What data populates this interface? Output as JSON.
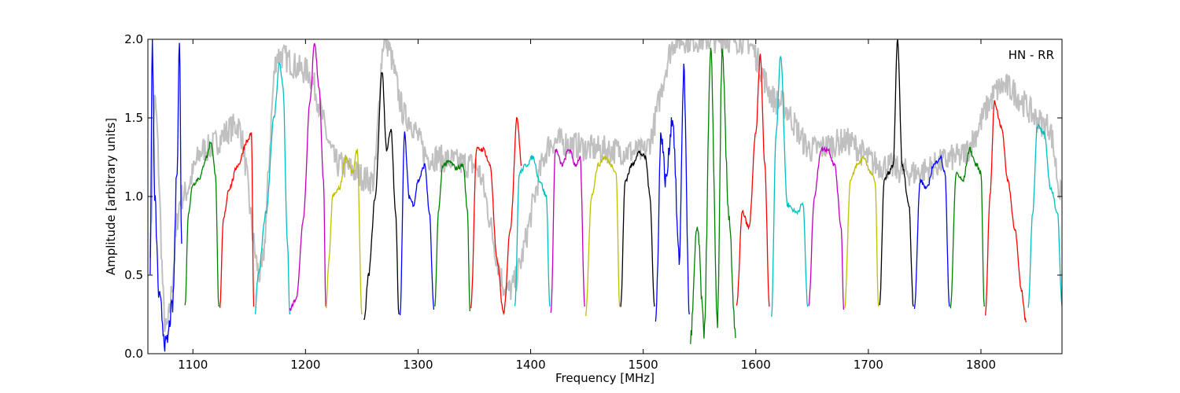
{
  "chart_data": {
    "type": "line",
    "title": "",
    "xlabel": "Frequency [MHz]",
    "ylabel": "Amplitude [arbitrary units]",
    "xlim": [
      1060,
      1872
    ],
    "ylim": [
      0.0,
      2.0
    ],
    "xticks": [
      "1100",
      "1200",
      "1300",
      "1400",
      "1500",
      "1600",
      "1700",
      "1800"
    ],
    "yticks": [
      "0.0",
      "0.5",
      "1.0",
      "1.5",
      "2.0"
    ],
    "grid": false,
    "annotation": "HN - RR",
    "background_color": "#c0c0c0",
    "band_colors": [
      "#0000ff",
      "#008000",
      "#ff0000",
      "#00bfbf",
      "#bf00bf",
      "#bfbf00",
      "#000000"
    ],
    "band_width_mhz": 31,
    "band_start_mhz": 1062,
    "bands": [
      {
        "color": "#0000ff",
        "x": [
          1062,
          1064,
          1066,
          1070,
          1076,
          1082,
          1086,
          1088,
          1090
        ],
        "y": [
          0.55,
          2.0,
          1.0,
          0.35,
          0.05,
          0.3,
          1.2,
          2.0,
          0.7
        ]
      },
      {
        "color": "#008000",
        "x": [
          1093,
          1096,
          1100,
          1106,
          1112,
          1116,
          1120,
          1123
        ],
        "y": [
          0.3,
          0.9,
          1.08,
          1.12,
          1.25,
          1.35,
          1.15,
          0.3
        ]
      },
      {
        "color": "#ff0000",
        "x": [
          1124,
          1127,
          1132,
          1140,
          1148,
          1152,
          1154
        ],
        "y": [
          0.28,
          0.85,
          1.05,
          1.2,
          1.35,
          1.4,
          0.3
        ]
      },
      {
        "color": "#00bfbf",
        "x": [
          1155,
          1158,
          1165,
          1172,
          1177,
          1180,
          1184,
          1186
        ],
        "y": [
          0.25,
          0.5,
          0.9,
          1.5,
          1.85,
          1.7,
          0.7,
          0.25
        ]
      },
      {
        "color": "#bf00bf",
        "x": [
          1186,
          1192,
          1198,
          1204,
          1208,
          1212,
          1216,
          1218
        ],
        "y": [
          0.28,
          0.35,
          0.85,
          1.6,
          1.98,
          1.7,
          1.1,
          0.3
        ]
      },
      {
        "color": "#bfbf00",
        "x": [
          1218,
          1221,
          1224,
          1230,
          1236,
          1242,
          1246,
          1250
        ],
        "y": [
          0.28,
          0.6,
          1.0,
          1.05,
          1.25,
          1.15,
          1.3,
          0.25
        ]
      },
      {
        "color": "#000000",
        "x": [
          1252,
          1256,
          1262,
          1268,
          1272,
          1276,
          1280,
          1283
        ],
        "y": [
          0.2,
          0.5,
          1.0,
          1.8,
          1.3,
          1.42,
          0.9,
          0.25
        ]
      },
      {
        "color": "#0000ff",
        "x": [
          1284,
          1288,
          1292,
          1296,
          1300,
          1306,
          1310,
          1314
        ],
        "y": [
          0.25,
          1.4,
          1.0,
          0.95,
          1.1,
          1.2,
          0.9,
          0.28
        ]
      },
      {
        "color": "#008000",
        "x": [
          1315,
          1318,
          1322,
          1328,
          1334,
          1340,
          1344,
          1346
        ],
        "y": [
          0.3,
          0.9,
          1.2,
          1.22,
          1.18,
          1.2,
          0.9,
          0.27
        ]
      },
      {
        "color": "#ff0000",
        "x": [
          1347,
          1352,
          1358,
          1364,
          1370,
          1376,
          1382,
          1388,
          1392
        ],
        "y": [
          0.3,
          1.3,
          1.3,
          1.2,
          0.6,
          0.25,
          0.8,
          1.5,
          1.2
        ]
      },
      {
        "color": "#00bfbf",
        "x": [
          1386,
          1390,
          1396,
          1402,
          1408,
          1414,
          1417
        ],
        "y": [
          0.3,
          1.15,
          1.2,
          1.25,
          1.1,
          1.0,
          0.3
        ]
      },
      {
        "color": "#bf00bf",
        "x": [
          1418,
          1422,
          1428,
          1434,
          1440,
          1444,
          1448
        ],
        "y": [
          0.25,
          1.3,
          1.2,
          1.3,
          1.2,
          1.25,
          0.3
        ]
      },
      {
        "color": "#bfbf00",
        "x": [
          1449,
          1454,
          1460,
          1466,
          1472,
          1476,
          1479
        ],
        "y": [
          0.25,
          1.0,
          1.2,
          1.25,
          1.2,
          1.15,
          0.3
        ]
      },
      {
        "color": "#000000",
        "x": [
          1480,
          1484,
          1490,
          1496,
          1502,
          1506,
          1510
        ],
        "y": [
          0.3,
          1.1,
          1.2,
          1.28,
          1.25,
          1.0,
          0.3
        ]
      },
      {
        "color": "#0000ff",
        "x": [
          1511,
          1516,
          1520,
          1526,
          1532,
          1536,
          1541
        ],
        "y": [
          0.2,
          1.4,
          1.1,
          1.5,
          0.6,
          1.8,
          0.25
        ]
      },
      {
        "color": "#008000",
        "x": [
          1542,
          1548,
          1554,
          1560,
          1566,
          1570,
          1576,
          1582
        ],
        "y": [
          0.1,
          0.8,
          0.15,
          1.9,
          0.2,
          1.9,
          0.9,
          0.1
        ]
      },
      {
        "color": "#ff0000",
        "x": [
          1583,
          1588,
          1594,
          1600,
          1604,
          1608,
          1612
        ],
        "y": [
          0.3,
          0.9,
          0.8,
          1.4,
          1.9,
          1.2,
          0.3
        ]
      },
      {
        "color": "#00bfbf",
        "x": [
          1614,
          1618,
          1622,
          1628,
          1636,
          1642,
          1646
        ],
        "y": [
          0.25,
          1.4,
          1.9,
          0.95,
          0.9,
          0.95,
          0.3
        ]
      },
      {
        "color": "#bf00bf",
        "x": [
          1647,
          1652,
          1658,
          1664,
          1670,
          1676,
          1678
        ],
        "y": [
          0.3,
          1.0,
          1.3,
          1.3,
          1.2,
          0.8,
          0.28
        ]
      },
      {
        "color": "#bfbf00",
        "x": [
          1679,
          1684,
          1690,
          1696,
          1702,
          1706,
          1709
        ],
        "y": [
          0.3,
          1.1,
          1.2,
          1.25,
          1.15,
          1.1,
          0.3
        ]
      },
      {
        "color": "#000000",
        "x": [
          1710,
          1714,
          1718,
          1722,
          1726,
          1730,
          1736,
          1740
        ],
        "y": [
          0.3,
          1.1,
          1.15,
          1.2,
          2.0,
          1.2,
          0.95,
          0.3
        ]
      },
      {
        "color": "#0000ff",
        "x": [
          1741,
          1746,
          1752,
          1758,
          1764,
          1768,
          1772
        ],
        "y": [
          0.3,
          1.1,
          1.05,
          1.2,
          1.25,
          1.15,
          0.3
        ]
      },
      {
        "color": "#008000",
        "x": [
          1773,
          1778,
          1784,
          1790,
          1796,
          1800,
          1803
        ],
        "y": [
          0.3,
          1.15,
          1.1,
          1.3,
          1.2,
          1.15,
          0.3
        ]
      },
      {
        "color": "#ff0000",
        "x": [
          1804,
          1808,
          1812,
          1818,
          1824,
          1830,
          1836,
          1840
        ],
        "y": [
          0.25,
          1.0,
          1.6,
          1.45,
          1.1,
          0.8,
          0.4,
          0.2
        ]
      },
      {
        "color": "#00bfbf",
        "x": [
          1842,
          1846,
          1850,
          1856,
          1862,
          1868,
          1872
        ],
        "y": [
          0.3,
          0.9,
          1.45,
          1.4,
          1.05,
          0.9,
          0.3
        ]
      }
    ],
    "background_series": {
      "x": [
        1062,
        1066,
        1076,
        1090,
        1110,
        1140,
        1160,
        1175,
        1200,
        1230,
        1260,
        1270,
        1290,
        1310,
        1350,
        1380,
        1420,
        1460,
        1500,
        1530,
        1560,
        1590,
        1620,
        1650,
        1680,
        1710,
        1740,
        1780,
        1820,
        1860,
        1872
      ],
      "y": [
        0.7,
        1.6,
        0.15,
        1.0,
        1.3,
        1.45,
        0.5,
        1.9,
        1.8,
        1.2,
        1.1,
        2.0,
        1.5,
        1.25,
        1.2,
        0.4,
        1.35,
        1.3,
        1.28,
        2.0,
        2.0,
        2.0,
        1.6,
        1.3,
        1.35,
        1.2,
        1.15,
        1.25,
        1.7,
        1.45,
        1.0
      ]
    }
  }
}
